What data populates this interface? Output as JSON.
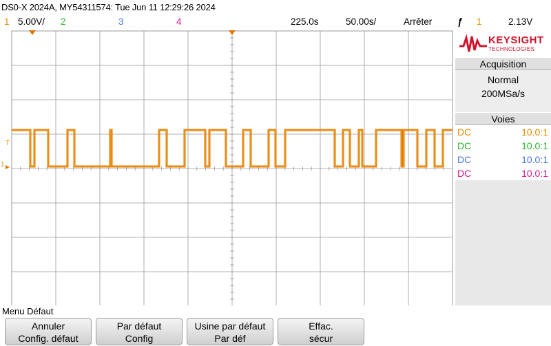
{
  "title": "DS0-X 2024A, MY54311574: Tue Jun 11 12:29:26 2024",
  "status": {
    "ch1_num": "1",
    "ch1_scale": "5.00V/",
    "ch2_num": "2",
    "ch3_num": "3",
    "ch4_num": "4",
    "delay": "225.0ѕ",
    "timebase": "50.00ѕ/",
    "run_state": "Arrêter",
    "trigger_icon": "ƒ",
    "trigger_source": "1",
    "trigger_level": "2.13V"
  },
  "colors": {
    "ch1": "#e88a00",
    "ch2": "#2ab52a",
    "ch3": "#4a74e0",
    "ch4": "#d0178f",
    "grid": "#9a9a9a",
    "trace": "#e07800"
  },
  "logo": {
    "brand": "KEYSIGHT",
    "sub": "TECHNOLOGIES"
  },
  "acquisition": {
    "header": "Acquisition",
    "mode": "Normal",
    "rate": "200MSa/s"
  },
  "channels": {
    "header": "Voies",
    "rows": [
      {
        "coupling": "DC",
        "probe": "10.0:1"
      },
      {
        "coupling": "DC",
        "probe": "10.0:1"
      },
      {
        "coupling": "DC",
        "probe": "10.0:1"
      },
      {
        "coupling": "DC",
        "probe": "10.0:1"
      }
    ]
  },
  "markers": {
    "trig_level": "T",
    "ch1_ground": "1"
  },
  "menu": {
    "title": "Menu Défaut",
    "softkeys": [
      {
        "line1": "Annuler",
        "line2": "Config. défaut"
      },
      {
        "line1": "Par défaut",
        "line2": "Config"
      },
      {
        "line1": "Usine par défaut",
        "line2": "Par déf"
      },
      {
        "line1": "Effac.",
        "line2": "sécur"
      }
    ]
  }
}
